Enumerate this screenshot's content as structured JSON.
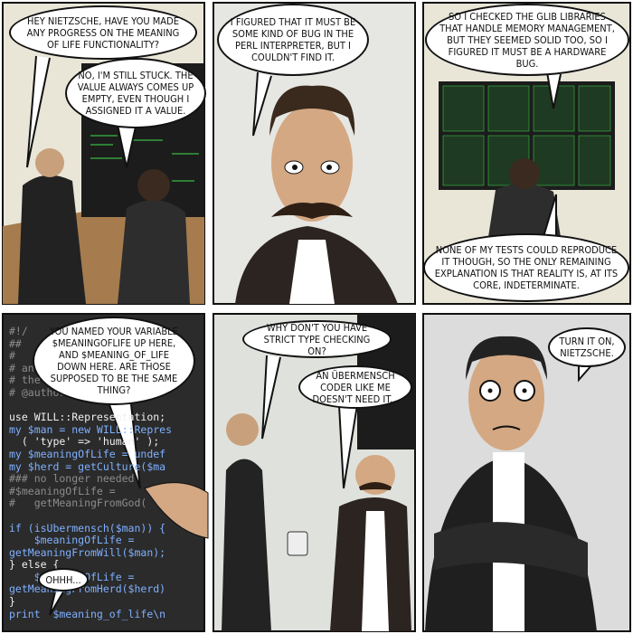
{
  "panels": [
    {
      "bubbles": [
        "HEY NIETZSCHE, HAVE YOU MADE ANY PROGRESS ON THE MEANING OF LIFE FUNCTIONALITY?",
        "NO, I'M STILL STUCK. THE VALUE ALWAYS COMES UP EMPTY, EVEN THOUGH I ASSIGNED IT A VALUE."
      ]
    },
    {
      "bubbles": [
        "I FIGURED THAT IT MUST BE SOME KIND OF BUG IN THE PERL INTERPRETER, BUT I COULDN'T FIND IT."
      ]
    },
    {
      "bubbles": [
        "SO I CHECKED THE GLIB LIBRARIES THAT HANDLE MEMORY MANAGEMENT, BUT THEY SEEMED SOLID TOO, SO I FIGURED IT MUST BE A HARDWARE BUG.",
        "NONE OF MY TESTS COULD REPRODUCE IT THOUGH, SO THE ONLY REMAINING EXPLANATION IS THAT REALITY IS, AT ITS CORE, INDETERMINATE."
      ]
    },
    {
      "bubbles": [
        "YOU NAMED YOUR VARIABLE $MEANINGOFLIFE UP HERE, AND $MEANING_OF_LIFE DOWN HERE. ARE THOSE SUPPOSED TO BE THE SAME THING?",
        "OHHH..."
      ],
      "code_lines": [
        "#!/",
        "##",
        "#",
        "# an",
        "# the",
        "# @author: Nietzsche",
        "",
        "use WILL::Representation;",
        "my $man = new WILL::Repres",
        "  ( 'type' => 'human' );",
        "my $meaningOfLife = undef",
        "my $herd = getCulture($ma",
        "### no longer needed",
        "#$meaningOfLife =",
        "#   getMeaningFromGod(",
        "",
        "if (isUbermensch($man)) {",
        "    $meaningOfLife =",
        "getMeaningFromWill($man);",
        "} else {",
        "    $meaningOfLife =",
        "getMeaningFromHerd($herd)",
        "}",
        "print  $meaning_of_life\\n"
      ]
    },
    {
      "bubbles": [
        "WHY DON'T YOU HAVE STRICT TYPE CHECKING ON?",
        "AN ÜBERMENSCH CODER LIKE ME DOESN'T NEED IT..."
      ]
    },
    {
      "bubbles": [
        "TURN IT ON, NIETZSCHE."
      ]
    }
  ]
}
